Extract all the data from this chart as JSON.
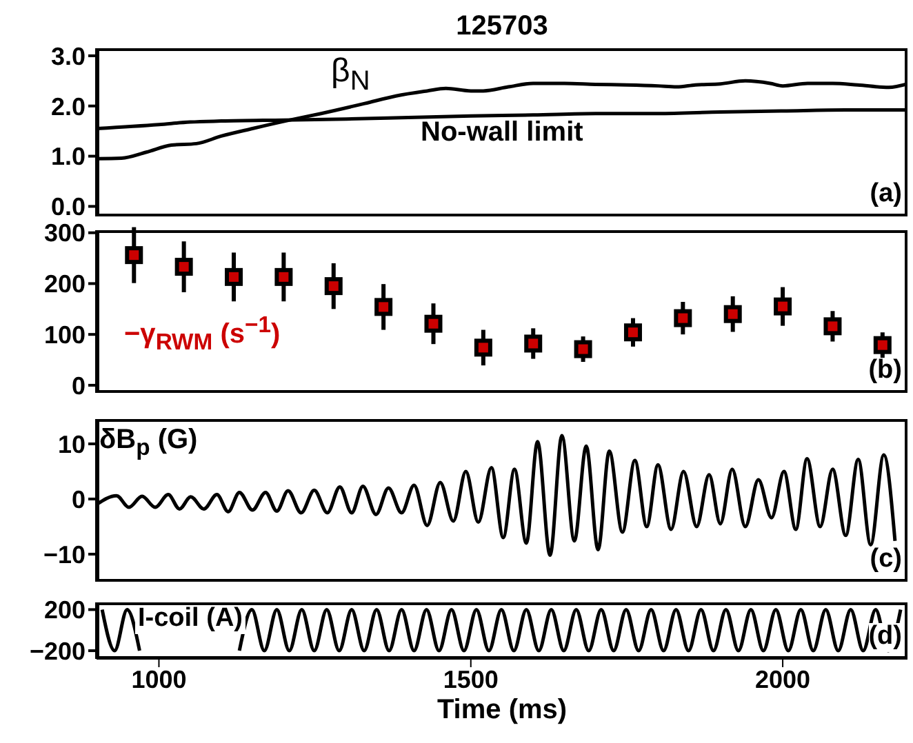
{
  "chart_data": [
    {
      "type": "line",
      "title": "125703",
      "xlim": [
        900,
        2200
      ],
      "xticks": [
        1000,
        1500,
        2000
      ],
      "ylim": [
        -0.2,
        3.15
      ],
      "yticks": [
        {
          "value": 0,
          "label": "0.0"
        },
        {
          "value": 1,
          "label": "1.0"
        },
        {
          "value": 2,
          "label": "2.0"
        },
        {
          "value": 3,
          "label": "3.0"
        }
      ],
      "tick_labels": "y",
      "marker": "none",
      "line_style": "solid",
      "annotations": [
        "(a)"
      ],
      "series": [
        {
          "name": "β$_{N}$",
          "color": "#000000",
          "x": [
            900,
            940,
            980,
            1020,
            1060,
            1100,
            1150,
            1210,
            1260,
            1330,
            1380,
            1430,
            1460,
            1500,
            1520,
            1560,
            1600,
            1650,
            1700,
            1750,
            1800,
            1830,
            1860,
            1900,
            1940,
            1980,
            2000,
            2040,
            2080,
            2120,
            2170,
            2200
          ],
          "values": [
            0.95,
            0.96,
            1.08,
            1.22,
            1.25,
            1.4,
            1.55,
            1.72,
            1.85,
            2.05,
            2.2,
            2.3,
            2.35,
            2.3,
            2.3,
            2.38,
            2.45,
            2.45,
            2.43,
            2.42,
            2.4,
            2.38,
            2.42,
            2.44,
            2.5,
            2.45,
            2.4,
            2.45,
            2.45,
            2.42,
            2.37,
            2.44
          ]
        },
        {
          "name": "No-wall limit",
          "color": "#000000",
          "x": [
            900,
            1000,
            1050,
            1100,
            1200,
            1300,
            1400,
            1500,
            1600,
            1700,
            1800,
            1900,
            2000,
            2100,
            2200
          ],
          "values": [
            1.55,
            1.63,
            1.68,
            1.7,
            1.72,
            1.74,
            1.77,
            1.8,
            1.82,
            1.85,
            1.85,
            1.88,
            1.9,
            1.92,
            1.92
          ]
        }
      ]
    },
    {
      "type": "scatter",
      "xlim": [
        900,
        2200
      ],
      "xticks": [
        1000,
        1500,
        2000
      ],
      "ylim": [
        -15,
        305
      ],
      "yticks": [
        0,
        100,
        200,
        300
      ],
      "tick_labels": "y",
      "marker": "square",
      "annotations": [
        "(b)"
      ],
      "series": [
        {
          "name": "−γ$_{RWM}$ (s$^{−1}$)",
          "color": "#cc0000",
          "x": [
            960,
            1040,
            1120,
            1200,
            1280,
            1360,
            1440,
            1520,
            1600,
            1680,
            1760,
            1840,
            1920,
            2000,
            2080,
            2160
          ],
          "values": [
            256,
            233,
            213,
            213,
            195,
            154,
            121,
            74,
            82,
            71,
            104,
            132,
            140,
            155,
            116,
            79
          ],
          "errors": [
            55,
            50,
            48,
            48,
            45,
            45,
            40,
            35,
            30,
            25,
            28,
            32,
            35,
            38,
            30,
            25
          ]
        }
      ]
    },
    {
      "type": "line",
      "xlim": [
        900,
        2200
      ],
      "xticks": [
        1000,
        1500,
        2000
      ],
      "ylim": [
        -15,
        14.5
      ],
      "yticks": [
        -10,
        0,
        10
      ],
      "tick_labels": "y",
      "marker": "none",
      "line_style": "solid",
      "annotations": [
        "(c)"
      ],
      "series": [
        {
          "name": "δB$_{p}$ (G)",
          "color": "#000000",
          "x": [
            900,
            932,
            952,
            973,
            994,
            1015,
            1033,
            1051,
            1072,
            1093,
            1111,
            1129,
            1150,
            1171,
            1189,
            1207,
            1228,
            1249,
            1270,
            1290,
            1309,
            1327,
            1348,
            1368,
            1389,
            1409,
            1430,
            1451,
            1472,
            1492,
            1512,
            1533,
            1552,
            1570,
            1589,
            1607,
            1627,
            1646,
            1666,
            1685,
            1704,
            1722,
            1743,
            1763,
            1782,
            1800,
            1821,
            1841,
            1862,
            1882,
            1900,
            1919,
            1940,
            1961,
            1982,
            2002,
            2021,
            2039,
            2060,
            2080,
            2101,
            2121,
            2141,
            2162,
            2180
          ],
          "values": [
            -1,
            0.6,
            -1.5,
            0.5,
            -1.5,
            0.8,
            -1.8,
            0.4,
            -1.8,
            0.8,
            -2.3,
            1.2,
            -2,
            1.2,
            -2.2,
            1.5,
            -2.5,
            1.6,
            -2.5,
            2.2,
            -2.5,
            2.3,
            -2.8,
            2,
            -2.5,
            2.5,
            -4.8,
            3,
            -4,
            5,
            -4.2,
            5.7,
            -7,
            5.4,
            -8,
            10.4,
            -10.2,
            11.5,
            -7.6,
            9.6,
            -9.2,
            8.7,
            -6,
            7,
            -5,
            6.2,
            -5.5,
            5,
            -5,
            4.4,
            -4.5,
            5.4,
            -5,
            3.5,
            -3.4,
            5,
            -5.5,
            7.3,
            -5,
            5.4,
            -6.6,
            7.2,
            -8.3,
            8,
            -7.6
          ]
        }
      ]
    },
    {
      "type": "line",
      "xlim": [
        900,
        2200
      ],
      "xticks": [
        1000,
        1500,
        2000
      ],
      "ylim": [
        -280,
        270
      ],
      "yticks": [
        -200,
        200
      ],
      "xlabel": "Time (ms)",
      "marker": "none",
      "line_style": "solid",
      "annotations": [
        "(d)"
      ],
      "series": [
        {
          "name": "I-coil (A)",
          "color": "#000000",
          "x": [
            909,
            929,
            949,
            969,
            989,
            1009,
            1029,
            1049,
            1069,
            1089,
            1109,
            1129,
            1149,
            1169,
            1189,
            1209,
            1229,
            1249,
            1269,
            1289,
            1309,
            1329,
            1349,
            1369,
            1389,
            1409,
            1429,
            1449,
            1469,
            1489,
            1509,
            1529,
            1549,
            1569,
            1589,
            1609,
            1629,
            1649,
            1669,
            1689,
            1709,
            1729,
            1749,
            1769,
            1789,
            1809,
            1829,
            1849,
            1869,
            1889,
            1909,
            1929,
            1949,
            1969,
            1989,
            2009,
            2029,
            2049,
            2069,
            2089,
            2109,
            2129,
            2149,
            2169,
            2189
          ],
          "values": [
            200,
            -200,
            200,
            -200,
            null,
            null,
            null,
            null,
            null,
            null,
            null,
            -200,
            200,
            -200,
            200,
            -200,
            200,
            -200,
            200,
            -200,
            200,
            -200,
            200,
            -200,
            200,
            -200,
            200,
            -200,
            200,
            -200,
            200,
            -200,
            200,
            -200,
            200,
            -200,
            200,
            -200,
            200,
            -200,
            200,
            -200,
            200,
            -200,
            200,
            -200,
            200,
            -200,
            200,
            -200,
            200,
            -200,
            200,
            -200,
            200,
            -200,
            200,
            -200,
            200,
            -200,
            200,
            -200,
            200,
            -200,
            200
          ]
        }
      ]
    }
  ]
}
